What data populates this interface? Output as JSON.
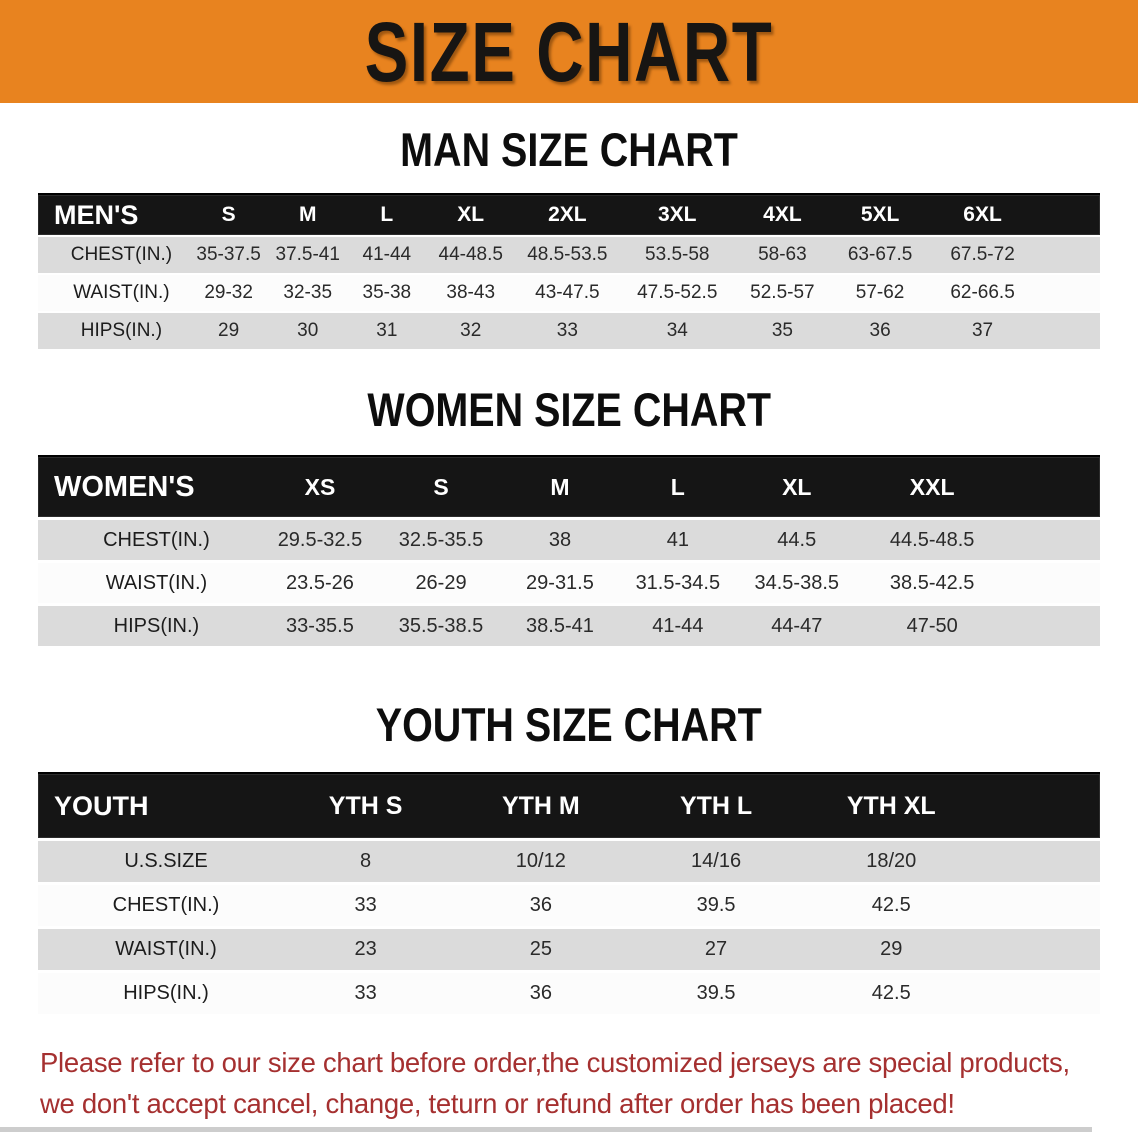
{
  "banner": {
    "title": "SIZE CHART",
    "bg_color": "#E8831F",
    "text_color": "#171513"
  },
  "sections": {
    "men": {
      "heading": "MAN SIZE CHART",
      "table": {
        "corner_label": "MEN'S",
        "columns": [
          "S",
          "M",
          "L",
          "XL",
          "2XL",
          "3XL",
          "4XL",
          "5XL",
          "6XL"
        ],
        "rows": [
          {
            "label": "CHEST(IN.)",
            "values": [
              "35-37.5",
              "37.5-41",
              "41-44",
              "44-48.5",
              "48.5-53.5",
              "53.5-58",
              "58-63",
              "63-67.5",
              "67.5-72"
            ]
          },
          {
            "label": "WAIST(IN.)",
            "values": [
              "29-32",
              "32-35",
              "35-38",
              "38-43",
              "43-47.5",
              "47.5-52.5",
              "52.5-57",
              "57-62",
              "62-66.5"
            ]
          },
          {
            "label": "HIPS(IN.)",
            "values": [
              "29",
              "30",
              "31",
              "32",
              "33",
              "34",
              "35",
              "36",
              "37"
            ]
          }
        ]
      }
    },
    "women": {
      "heading": "WOMEN SIZE CHART",
      "table": {
        "corner_label": "WOMEN'S",
        "columns": [
          "XS",
          "S",
          "M",
          "L",
          "XL",
          "XXL"
        ],
        "rows": [
          {
            "label": "CHEST(IN.)",
            "values": [
              "29.5-32.5",
              "32.5-35.5",
              "38",
              "41",
              "44.5",
              "44.5-48.5"
            ]
          },
          {
            "label": "WAIST(IN.)",
            "values": [
              "23.5-26",
              "26-29",
              "29-31.5",
              "31.5-34.5",
              "34.5-38.5",
              "38.5-42.5"
            ]
          },
          {
            "label": "HIPS(IN.)",
            "values": [
              "33-35.5",
              "35.5-38.5",
              "38.5-41",
              "41-44",
              "44-47",
              "47-50"
            ]
          }
        ]
      }
    },
    "youth": {
      "heading": "YOUTH SIZE CHART",
      "table": {
        "corner_label": "YOUTH",
        "columns": [
          "YTH S",
          "YTH M",
          "YTH L",
          "YTH XL"
        ],
        "rows": [
          {
            "label": "U.S.SIZE",
            "values": [
              "8",
              "10/12",
              "14/16",
              "18/20"
            ]
          },
          {
            "label": "CHEST(IN.)",
            "values": [
              "33",
              "36",
              "39.5",
              "42.5"
            ]
          },
          {
            "label": "WAIST(IN.)",
            "values": [
              "23",
              "25",
              "27",
              "29"
            ]
          },
          {
            "label": "HIPS(IN.)",
            "values": [
              "33",
              "36",
              "39.5",
              "42.5"
            ]
          }
        ]
      }
    }
  },
  "footer": {
    "line1": "Please refer to our size chart before order,the customized jerseys are special products,",
    "line2": "we don't accept cancel, change, teturn or refund after order has been placed!",
    "text_color": "#A53030"
  }
}
